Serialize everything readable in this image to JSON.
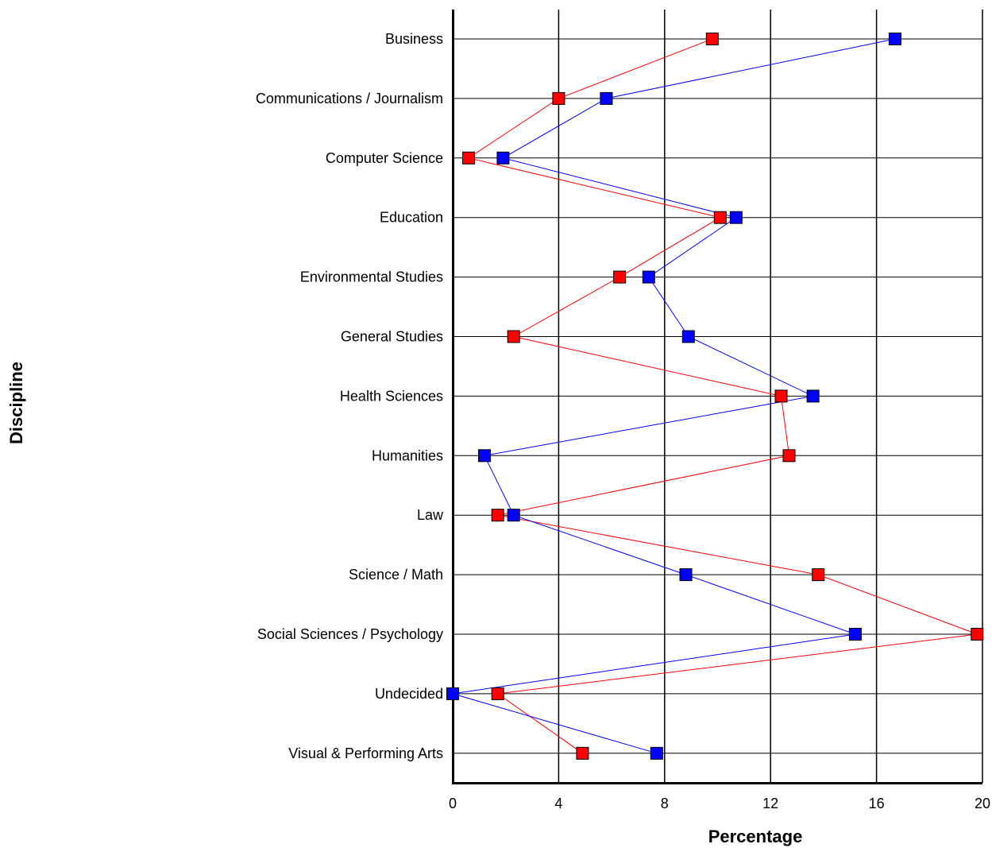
{
  "chart_data": {
    "type": "scatter",
    "title": "",
    "xlabel": "Percentage",
    "ylabel": "Discipline",
    "xlim": [
      0,
      20
    ],
    "xticks": [
      0,
      4,
      8,
      12,
      16,
      20
    ],
    "xtick_labels": [
      "0",
      "4",
      "8",
      "12",
      "16",
      "20"
    ],
    "grid": true,
    "legend": "none",
    "categories": [
      "Business",
      "Communications / Journalism",
      "Computer Science",
      "Education",
      "Environmental Studies",
      "General Studies",
      "Health Sciences",
      "Humanities",
      "Law",
      "Science / Math",
      "Social Sciences / Psychology",
      "Undecided",
      "Visual & Performing Arts"
    ],
    "series": [
      {
        "color": "#ff0000",
        "values": [
          9.8,
          4.0,
          0.6,
          10.1,
          6.3,
          2.3,
          12.4,
          12.7,
          1.7,
          13.8,
          19.8,
          1.7,
          4.9
        ]
      },
      {
        "color": "#0000ff",
        "values": [
          16.7,
          5.8,
          1.9,
          10.7,
          7.4,
          8.9,
          13.6,
          1.2,
          2.3,
          8.8,
          15.2,
          0.0,
          7.7
        ]
      }
    ]
  }
}
